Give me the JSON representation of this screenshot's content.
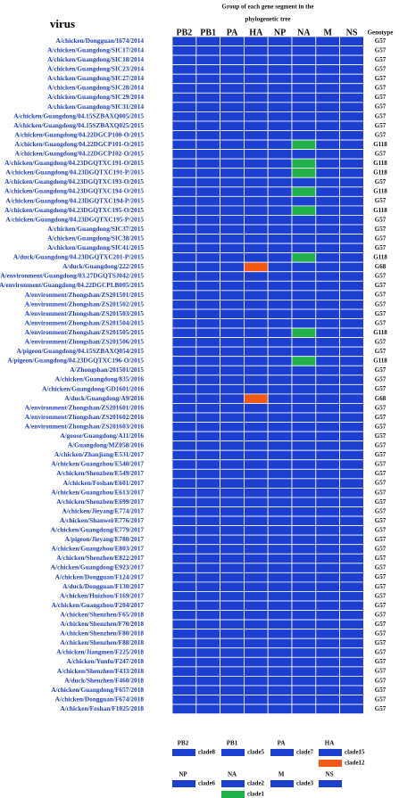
{
  "header": {
    "title_lines": [
      "Group of each gene segment in the",
      "phylogenetic tree"
    ],
    "virus_label": "virus",
    "genotype_label": "Genotype"
  },
  "segments": [
    "PB2",
    "PB1",
    "PA",
    "HA",
    "NP",
    "NA",
    "M",
    "NS"
  ],
  "legend": [
    {
      "segment": "PB2",
      "clades": [
        {
          "name": "clade8",
          "color": "#1c3fcf"
        }
      ]
    },
    {
      "segment": "PB1",
      "clades": [
        {
          "name": "clade5",
          "color": "#1c3fcf"
        }
      ]
    },
    {
      "segment": "PA",
      "clades": [
        {
          "name": "clade7",
          "color": "#1c3fcf"
        }
      ]
    },
    {
      "segment": "HA",
      "clades": [
        {
          "name": "clade15",
          "color": "#1c3fcf"
        },
        {
          "name": "clade12",
          "color": "#f05a14"
        }
      ]
    },
    {
      "segment": "NP",
      "clades": [
        {
          "name": "clade6",
          "color": "#1c3fcf"
        }
      ]
    },
    {
      "segment": "NA",
      "clades": [
        {
          "name": "clade2",
          "color": "#1c3fcf"
        },
        {
          "name": "clade1",
          "color": "#22b04b"
        }
      ]
    },
    {
      "segment": "M",
      "clades": [
        {
          "name": "clade3",
          "color": "#1c3fcf"
        }
      ]
    },
    {
      "segment": "NS",
      "clades": [
        {
          "name": null,
          "color": "#1c3fcf"
        }
      ]
    }
  ],
  "rows": [
    {
      "virus": "A/chicken/Dongguan/1674/2014",
      "genotype": "G57"
    },
    {
      "virus": "A/chicken/Guangdong/SIC17/2014",
      "genotype": "G57"
    },
    {
      "virus": "A/chicken/Guangdong/SIC18/2014",
      "genotype": "G57"
    },
    {
      "virus": "A/chicken/Guangdong/SIC23/2014",
      "genotype": "G57"
    },
    {
      "virus": "A/chicken/Guangdong/SIC27/2014",
      "genotype": "G57"
    },
    {
      "virus": "A/chicken/Guangdong/SIC28/2014",
      "genotype": "G57"
    },
    {
      "virus": "A/chicken/Guangdong/SIC29/2014",
      "genotype": "G57"
    },
    {
      "virus": "A/chicken/Guangdong/SIC31/2014",
      "genotype": "G57"
    },
    {
      "virus": "A/chicken/Guangdong/04.15SZBAXQ005/2015",
      "genotype": "G57"
    },
    {
      "virus": "A/chicken/Guangdong/04.15SZBAXQ025/2015",
      "genotype": "G57"
    },
    {
      "virus": "A/chicken/Guangdong/04.22DGCP100-O/2015",
      "genotype": "G57"
    },
    {
      "virus": "A/chicken/Guangdong/04.22DGCP101-O/2015",
      "genotype": "G118",
      "cells": {
        "NA": "clade1"
      }
    },
    {
      "virus": "A/chicken/Guangdong/04.22DGCP102-O/2015",
      "genotype": "G57"
    },
    {
      "virus": "A/chicken/Guangdong/04.23DGQTXC191-O/2015",
      "genotype": "G118",
      "cells": {
        "NA": "clade1"
      }
    },
    {
      "virus": "A/chicken/Guangdong/04.23DGQTXC191-P/2015",
      "genotype": "G118",
      "cells": {
        "NA": "clade1"
      }
    },
    {
      "virus": "A/chicken/Guangdong/04.23DGQTXC193-O/2015",
      "genotype": "G57"
    },
    {
      "virus": "A/chicken/Guangdong/04.23DGQTXC194-O/2015",
      "genotype": "G118",
      "cells": {
        "NA": "clade1"
      }
    },
    {
      "virus": "A/chicken/Guangdong/04.23DGQTXC194-P/2015",
      "genotype": "G57"
    },
    {
      "virus": "A/chicken/Guangdong/04.23DGQTXC195-O/2015",
      "genotype": "G118",
      "cells": {
        "NA": "clade1"
      }
    },
    {
      "virus": "A/chicken/Guangdong/04.23DGQTXC195-P/2015",
      "genotype": "G57"
    },
    {
      "virus": "A/chicken/Guangdong/SIC37/2015",
      "genotype": "G57"
    },
    {
      "virus": "A/chicken/Guangdong/SIC38/2015",
      "genotype": "G57"
    },
    {
      "virus": "A/chicken/Guangdong/SIC41/2015",
      "genotype": "G57"
    },
    {
      "virus": "A/duck/Guangdong/04.23DGQTXC201-P/2015",
      "genotype": "G118",
      "cells": {
        "NA": "clade1"
      }
    },
    {
      "virus": "A/duck/Guangdong/222/2015",
      "genotype": "G68",
      "cells": {
        "HA": "clade12"
      }
    },
    {
      "virus": "A/environment/Guangdong/03.27DGQTSJ042/2015",
      "genotype": "G57"
    },
    {
      "virus": "A/environment/Guangdong/04.22DGCPLB005/2015",
      "genotype": "G57"
    },
    {
      "virus": "A/environment/Zhongshan/ZS201501/2015",
      "genotype": "G57"
    },
    {
      "virus": "A/environment/Zhongshan/ZS201502/2015",
      "genotype": "G57"
    },
    {
      "virus": "A/environment/Zhongshan/ZS201503/2015",
      "genotype": "G57"
    },
    {
      "virus": "A/environment/Zhongshan/ZS201504/2015",
      "genotype": "G57"
    },
    {
      "virus": "A/environment/Zhongshan/ZS201505/2015",
      "genotype": "G118",
      "cells": {
        "NA": "clade1"
      }
    },
    {
      "virus": "A/environment/Zhongshan/ZS201506/2015",
      "genotype": "G57"
    },
    {
      "virus": "A/pigeon/Guangdong/04.15SZBAXQ054/2015",
      "genotype": "G57"
    },
    {
      "virus": "A/pigeon/Guangdong/04.23DGQTXC196-O/2015",
      "genotype": "G118",
      "cells": {
        "NA": "clade1"
      }
    },
    {
      "virus": "A/Zhongshan/201501/2015",
      "genotype": "G57"
    },
    {
      "virus": "A/chicken/Guangdong/835/2016",
      "genotype": "G57"
    },
    {
      "virus": "A/chicken/Guangdong/GD1601/2016",
      "genotype": "G57"
    },
    {
      "virus": "A/duck/Guangdong/A9/2016",
      "genotype": "G68",
      "cells": {
        "HA": "clade12"
      }
    },
    {
      "virus": "A/environment/Zhongshan/ZS201601/2016",
      "genotype": "G57"
    },
    {
      "virus": "A/environment/Zhongshan/ZS201602/2016",
      "genotype": "G57"
    },
    {
      "virus": "A/environment/Zhongshan/ZS201603/2016",
      "genotype": "G57"
    },
    {
      "virus": "A/goose/Guangdong/A11/2016",
      "genotype": "G57"
    },
    {
      "virus": "A/Guangdong/MZ058/2016",
      "genotype": "G57"
    },
    {
      "virus": "A/chicken/Zhanjiang/E531/2017",
      "genotype": "G57"
    },
    {
      "virus": "A/chicken/Guangzhou/E540/2017",
      "genotype": "G57"
    },
    {
      "virus": "A/chicken/Shenzhen/E549/2017",
      "genotype": "G57"
    },
    {
      "virus": "A/chicken/Foshan/E601/2017",
      "genotype": "G57"
    },
    {
      "virus": "A/chicken/Guangzhou/E613/2017",
      "genotype": "G57"
    },
    {
      "virus": "A/chicken/Shenzhen/E699/2017",
      "genotype": "G57"
    },
    {
      "virus": "A/chicken/Jieyang/E774/2017",
      "genotype": "G57"
    },
    {
      "virus": "A/chicken/Shanwei/E776/2017",
      "genotype": "G57"
    },
    {
      "virus": "A/chicken/Guangdong/E779/2017",
      "genotype": "G57"
    },
    {
      "virus": "A/pigeon/Jieyang/E780/2017",
      "genotype": "G57"
    },
    {
      "virus": "A/chicken/Guangzhou/E803/2017",
      "genotype": "G57"
    },
    {
      "virus": "A/chicken/Shenzhen/E822/2017",
      "genotype": "G57"
    },
    {
      "virus": "A/chicken/Guangdong/E923/2017",
      "genotype": "G57"
    },
    {
      "virus": "A/chicken/Dongguan/F124/2017",
      "genotype": "G57"
    },
    {
      "virus": "A/duck/Dongguan/F130/2017",
      "genotype": "G57"
    },
    {
      "virus": "A/chicken/Huizhou/F169/2017",
      "genotype": "G57"
    },
    {
      "virus": "A/chicken/Guangzhou/F204/2017",
      "genotype": "G57"
    },
    {
      "virus": "A/chicken/Shenzhen/F65/2018",
      "genotype": "G57"
    },
    {
      "virus": "A/chicken/Shenzhen/F70/2018",
      "genotype": "G57"
    },
    {
      "virus": "A/chicken/Shenzhen/F80/2018",
      "genotype": "G57"
    },
    {
      "virus": "A/chicken/Shenzhen/F88/2018",
      "genotype": "G57"
    },
    {
      "virus": "A/chicken/Jiangmen/F225/2018",
      "genotype": "G57"
    },
    {
      "virus": "A/chicken/Yunfu/F247/2018",
      "genotype": "G57"
    },
    {
      "virus": "A/chicken/Shenzhen/F433/2018",
      "genotype": "G57"
    },
    {
      "virus": "A/duck/Shenzhen/F460/2018",
      "genotype": "G57"
    },
    {
      "virus": "A/chicken/Guangdong/F657/2018",
      "genotype": "G57"
    },
    {
      "virus": "A/chicken/Dongguan/F674/2018",
      "genotype": "G57"
    },
    {
      "virus": "A/chicken/Foshan/F1025/2018",
      "genotype": "G57"
    }
  ]
}
